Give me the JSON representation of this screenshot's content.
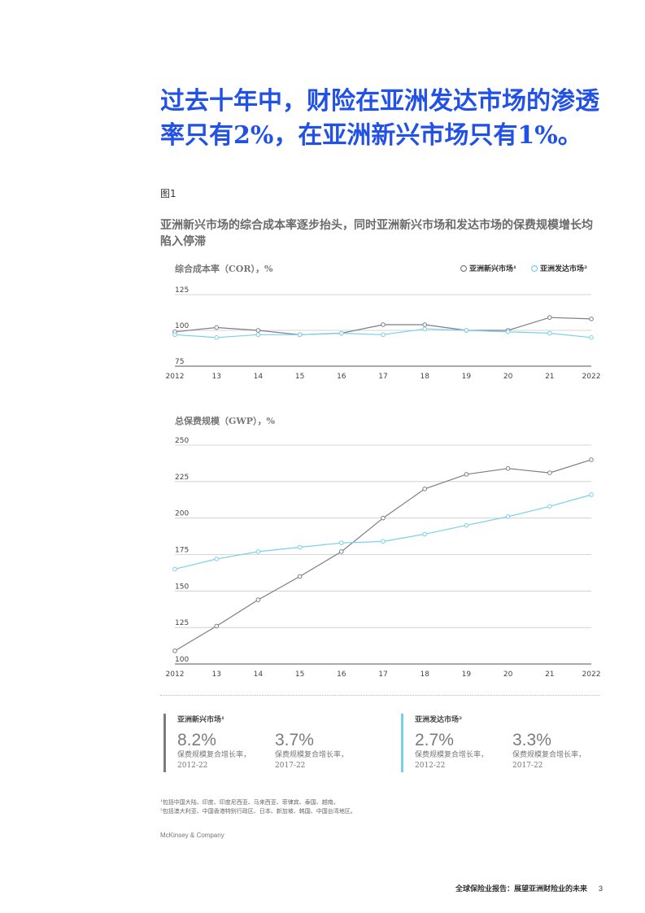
{
  "headline": "过去十年中，财险在亚洲发达市场的渗透率只有2%，在亚洲新兴市场只有1%。",
  "figure_label": "图1",
  "subtitle": "亚洲新兴市场的综合成本率逐步抬头，同时亚洲新兴市场和发达市场的保费规模增长均陷入停滞",
  "colors": {
    "headline": "#2251e6",
    "emerging": "#7b7e85",
    "developed": "#7ad0ea"
  },
  "chart_data": [
    {
      "type": "line",
      "ylabel": "综合成本率（COR），%",
      "x": [
        "2012",
        "13",
        "14",
        "15",
        "16",
        "17",
        "18",
        "19",
        "20",
        "21",
        "2022"
      ],
      "ylim": [
        75,
        125
      ],
      "yticks": [
        "125",
        "100",
        "75"
      ],
      "legend": {
        "placement": "top-right",
        "entries": [
          "亚洲新兴市场¹",
          "亚洲发达市场²"
        ]
      },
      "series": [
        {
          "name": "亚洲新兴市场¹",
          "values": [
            99,
            102,
            100,
            97,
            98,
            104,
            104,
            100,
            100,
            109,
            108
          ]
        },
        {
          "name": "亚洲发达市场²",
          "values": [
            97,
            95,
            97,
            97,
            98,
            97,
            101,
            100,
            99,
            98,
            95
          ]
        }
      ]
    },
    {
      "type": "line",
      "ylabel": "总保费规模（GWP），%",
      "x": [
        "2012",
        "13",
        "14",
        "15",
        "16",
        "17",
        "18",
        "19",
        "20",
        "21",
        "2022"
      ],
      "ylim": [
        100,
        250
      ],
      "yticks": [
        "250",
        "225",
        "200",
        "175",
        "150",
        "125",
        "100"
      ],
      "series": [
        {
          "name": "亚洲新兴市场¹",
          "values": [
            109,
            126,
            144,
            160,
            177,
            200,
            220,
            230,
            234,
            231,
            240
          ]
        },
        {
          "name": "亚洲发达市场²",
          "values": [
            165,
            172,
            177,
            180,
            183,
            184,
            189,
            195,
            201,
            208,
            216
          ]
        }
      ]
    }
  ],
  "stats": {
    "emerging": {
      "heading": "亚洲新兴市场¹",
      "items": [
        {
          "value": "8.2%",
          "desc1": "保费规模复合增长率，",
          "desc2": "2012-22"
        },
        {
          "value": "3.7%",
          "desc1": "保费规模复合增长率，",
          "desc2": "2017-22"
        }
      ]
    },
    "developed": {
      "heading": "亚洲发达市场²",
      "items": [
        {
          "value": "2.7%",
          "desc1": "保费规模复合增长率，",
          "desc2": "2012-22"
        },
        {
          "value": "3.3%",
          "desc1": "保费规模复合增长率，",
          "desc2": "2017-22"
        }
      ]
    }
  },
  "notes": [
    "¹包括中国大陆、印度、印度尼西亚、马来西亚、菲律宾、泰国、越南。",
    "²包括澳大利亚、中国香港特别行政区、日本、新加坡、韩国、中国台湾地区。"
  ],
  "brand": "McKinsey & Company",
  "footer": {
    "text": "全球保险业报告：展望亚洲财险业的未来",
    "page": "3"
  }
}
